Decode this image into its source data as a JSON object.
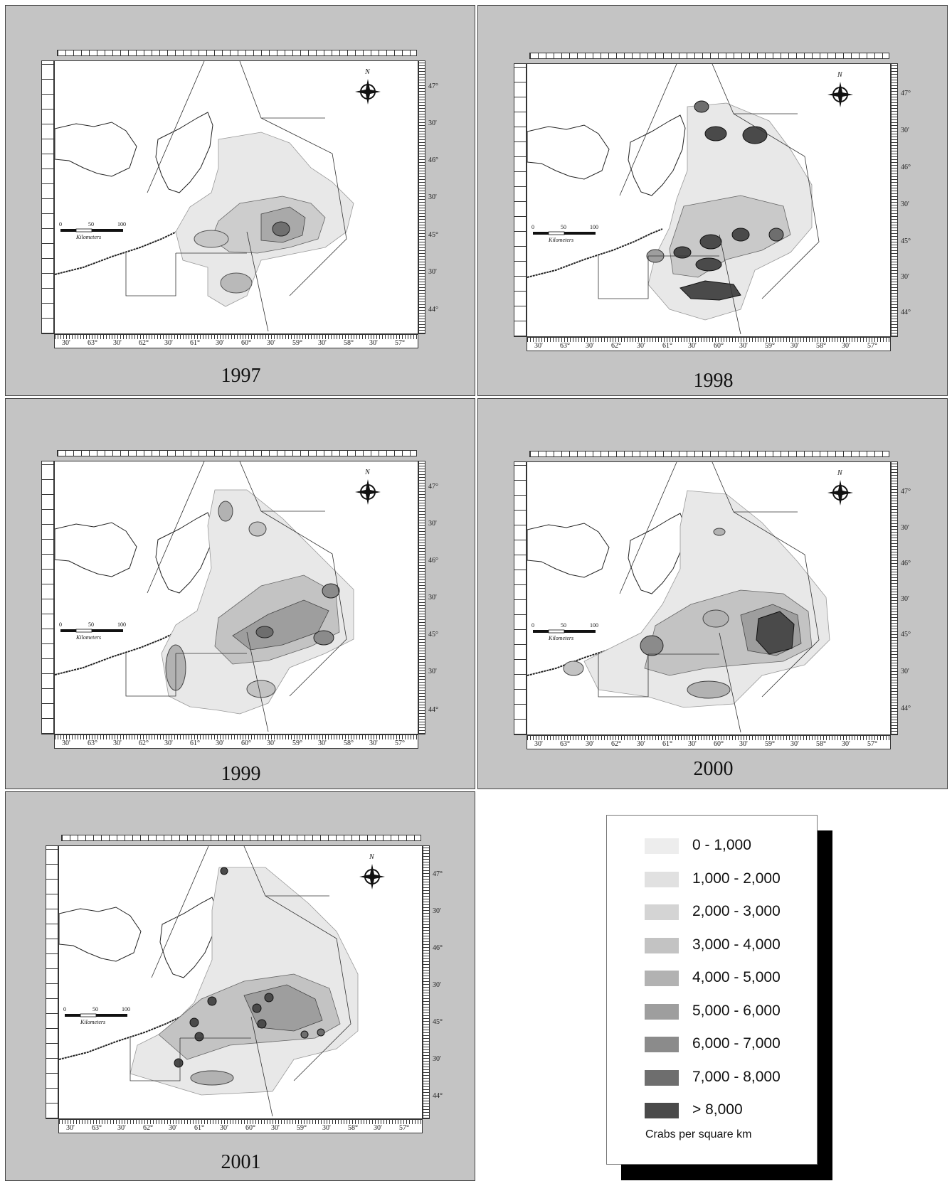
{
  "panels": [
    {
      "year": "1997",
      "lat_labels": [
        "47°",
        "30'",
        "46°",
        "30'",
        "45°",
        "30'",
        "44°"
      ]
    },
    {
      "year": "1998",
      "lat_labels": [
        "47°",
        "30'",
        "46°",
        "30'",
        "45°",
        "30'",
        "44°"
      ]
    },
    {
      "year": "1999",
      "lat_labels": [
        "47°",
        "30'",
        "46°",
        "30'",
        "45°",
        "30'",
        "44°"
      ]
    },
    {
      "year": "2000",
      "lat_labels": [
        "47°",
        "30'",
        "46°",
        "30'",
        "45°",
        "30'",
        "44°"
      ]
    },
    {
      "year": "2001",
      "lat_labels": [
        "47°",
        "30'",
        "46°",
        "30'",
        "45°",
        "30'",
        "44°"
      ]
    }
  ],
  "lon_labels": [
    "30'",
    "63°",
    "30'",
    "62°",
    "30'",
    "61°",
    "30'",
    "60°",
    "30'",
    "59°",
    "30'",
    "58°",
    "30'",
    "57°"
  ],
  "scale_bar": {
    "ticks": [
      "0",
      "50",
      "100"
    ],
    "unit": "Kilometers"
  },
  "compass_letter": "N",
  "legend": {
    "title": "Crabs per square km",
    "classes": [
      {
        "label": "0 - 1,000",
        "color": "#ededed"
      },
      {
        "label": "1,000 - 2,000",
        "color": "#e1e1e1"
      },
      {
        "label": "2,000 - 3,000",
        "color": "#d4d4d4"
      },
      {
        "label": "3,000 - 4,000",
        "color": "#c3c3c3"
      },
      {
        "label": "4,000 - 5,000",
        "color": "#b2b2b2"
      },
      {
        "label": "5,000 - 6,000",
        "color": "#9e9e9e"
      },
      {
        "label": "6,000 - 7,000",
        "color": "#8b8b8b"
      },
      {
        "label": "7,000 - 8,000",
        "color": "#6e6e6e"
      },
      {
        "label": "> 8,000",
        "color": "#4a4a4a"
      }
    ]
  }
}
